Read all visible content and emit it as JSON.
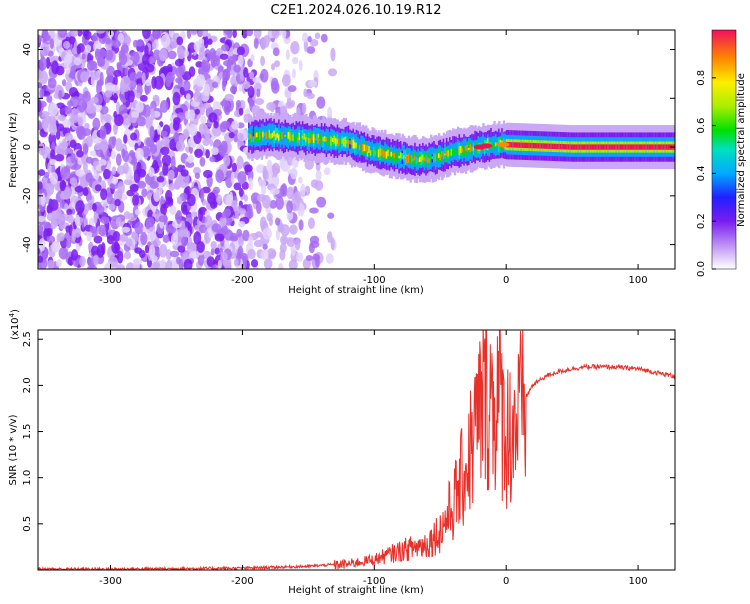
{
  "chart_data": [
    {
      "type": "heatmap",
      "title": "C2E1.2024.026.10.19.R12",
      "xlabel": "Height of straight line (km)",
      "ylabel": "Frequency (Hz)",
      "xlim": [
        -355,
        128
      ],
      "ylim": [
        -50,
        48
      ],
      "xticks": [
        -300,
        -200,
        -100,
        0,
        100
      ],
      "yticks": [
        -40,
        -20,
        0,
        20,
        40
      ],
      "colorbar": {
        "label": "Normalized spectral amplitude",
        "range": [
          0.0,
          1.0
        ],
        "ticks": [
          "0.0",
          "0.2",
          "0.4",
          "0.6",
          "0.8"
        ],
        "colormap": "rainbow-white-to-red"
      },
      "ridge_center_hz": [
        [
          -195,
          4
        ],
        [
          -180,
          5
        ],
        [
          -160,
          4
        ],
        [
          -140,
          3
        ],
        [
          -120,
          2
        ],
        [
          -110,
          0
        ],
        [
          -100,
          -2
        ],
        [
          -90,
          -3
        ],
        [
          -80,
          -4
        ],
        [
          -70,
          -5
        ],
        [
          -60,
          -5
        ],
        [
          -50,
          -4
        ],
        [
          -40,
          -2
        ],
        [
          -30,
          -1
        ],
        [
          -20,
          0
        ],
        [
          -10,
          1
        ],
        [
          0,
          1
        ],
        [
          50,
          0
        ],
        [
          128,
          0
        ]
      ],
      "grid": false
    },
    {
      "type": "line",
      "xlabel": "Height of straight line (km)",
      "ylabel": "SNR (10 * v/v)",
      "y_multiplier": "(x10^4)",
      "multiplier_base": "(x10",
      "multiplier_exp": "4",
      "multiplier_close": ")",
      "xlim": [
        -355,
        128
      ],
      "ylim": [
        0,
        2.6
      ],
      "xticks": [
        -300,
        -200,
        -100,
        0,
        100
      ],
      "yticks": [
        0.5,
        1.0,
        1.5,
        2.0,
        2.5
      ],
      "color": "#e8302a",
      "series": [
        {
          "x": [
            -355,
            -300,
            -250,
            -200,
            -150,
            -120,
            -100,
            -80,
            -60,
            -50,
            -40,
            -30,
            -20,
            -15,
            -10,
            -5,
            0,
            10,
            20,
            30,
            40,
            50,
            60,
            80,
            100,
            110,
            120,
            128
          ],
          "y": [
            0.01,
            0.01,
            0.015,
            0.02,
            0.04,
            0.07,
            0.12,
            0.22,
            0.3,
            0.45,
            0.75,
            1.2,
            1.8,
            2.1,
            1.9,
            2.0,
            1.55,
            1.75,
            2.0,
            2.1,
            2.15,
            2.18,
            2.2,
            2.2,
            2.18,
            2.15,
            2.12,
            2.1
          ]
        }
      ],
      "grid": false
    }
  ]
}
